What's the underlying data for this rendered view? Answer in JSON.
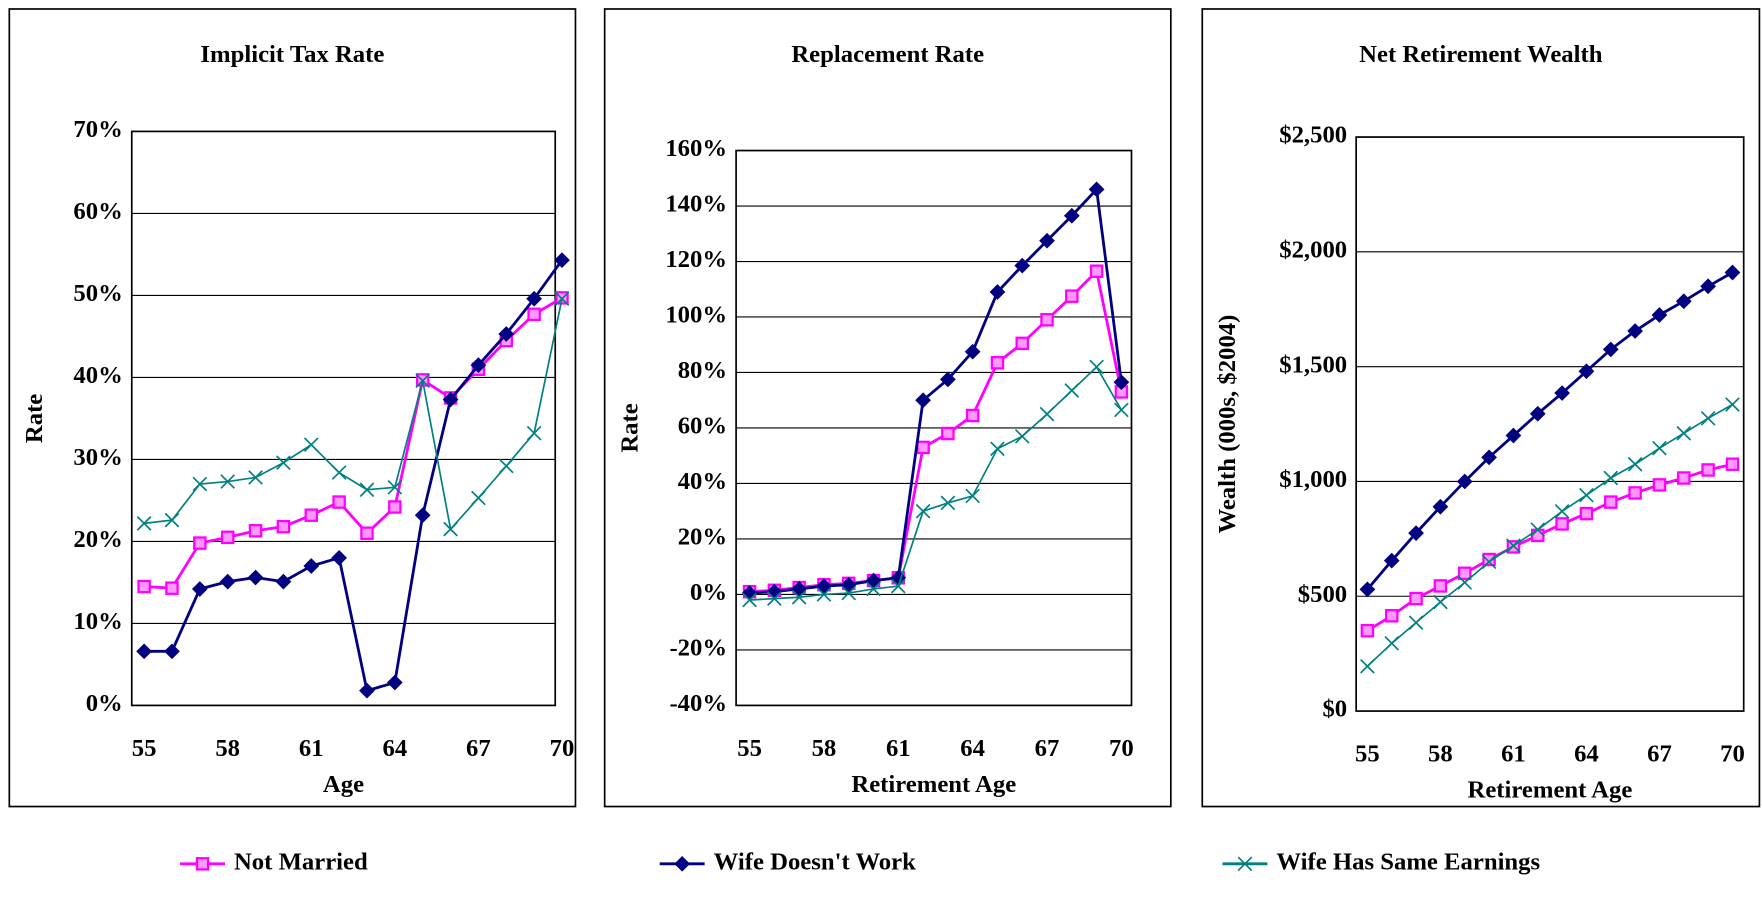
{
  "chart_data": [
    {
      "type": "line",
      "title": "Implicit Tax Rate",
      "x_label": "Age",
      "y_label": "Rate",
      "categories": [
        55,
        null,
        null,
        58,
        null,
        null,
        61,
        null,
        null,
        64,
        null,
        null,
        67,
        null,
        null,
        70
      ],
      "ylim": [
        0,
        70
      ],
      "yticks": [
        {
          "value": 0,
          "label": "0%"
        },
        {
          "value": 10,
          "label": "10%"
        },
        {
          "value": 20,
          "label": "20%"
        },
        {
          "value": 30,
          "label": "30%"
        },
        {
          "value": 40,
          "label": "40%"
        },
        {
          "value": 50,
          "label": "50%"
        },
        {
          "value": 60,
          "label": "60%"
        },
        {
          "value": 70,
          "label": "70%"
        }
      ],
      "grid": true,
      "series": [
        {
          "name": "Not Married",
          "color": "#ff00ff",
          "values": [
            14.5,
            14.3,
            19.8,
            20.5,
            21.3,
            21.8,
            23.2,
            24.8,
            21,
            24.2,
            39.7,
            37.5,
            41,
            44.5,
            47.7,
            49.7
          ]
        },
        {
          "name": "Wife Doesn't Work",
          "color": "#000080",
          "values": [
            6.6,
            6.6,
            14.2,
            15.1,
            15.6,
            15.1,
            17,
            18,
            1.8,
            2.8,
            23.2,
            37.3,
            41.5,
            45.3,
            49.6,
            54.3
          ]
        },
        {
          "name": "Wife Has Same Earnings",
          "color": "#008080",
          "values": [
            22.2,
            22.6,
            27,
            27.3,
            27.8,
            29.6,
            31.8,
            28.4,
            26.3,
            26.6,
            39.6,
            21.5,
            25.3,
            29.2,
            33.2,
            49.6
          ]
        }
      ]
    },
    {
      "type": "line",
      "title": "Replacement Rate",
      "x_label": "Retirement Age",
      "y_label": "Rate",
      "categories": [
        55,
        null,
        null,
        58,
        null,
        null,
        61,
        null,
        null,
        64,
        null,
        null,
        67,
        null,
        null,
        70
      ],
      "ylim": [
        -40,
        160
      ],
      "yticks": [
        {
          "value": -40,
          "label": "-40%"
        },
        {
          "value": -20,
          "label": "-20%"
        },
        {
          "value": 0,
          "label": "0%"
        },
        {
          "value": 20,
          "label": "20%"
        },
        {
          "value": 40,
          "label": "40%"
        },
        {
          "value": 60,
          "label": "60%"
        },
        {
          "value": 80,
          "label": "80%"
        },
        {
          "value": 100,
          "label": "100%"
        },
        {
          "value": 120,
          "label": "120%"
        },
        {
          "value": 140,
          "label": "140%"
        },
        {
          "value": 160,
          "label": "160%"
        }
      ],
      "grid": true,
      "series": [
        {
          "color": "#ff00ff",
          "values": [
            1,
            1.5,
            2.5,
            3.5,
            4,
            5,
            6,
            53,
            58,
            64.5,
            83.5,
            90.5,
            99,
            107.5,
            116.5,
            73
          ]
        },
        {
          "color": "#000080",
          "values": [
            0.5,
            1,
            2,
            3,
            3.5,
            5,
            6,
            70,
            77.5,
            87.5,
            109,
            118.5,
            127.5,
            136.5,
            146,
            76.5
          ]
        },
        {
          "color": "#008080",
          "values": [
            -2,
            -1.5,
            -1,
            0,
            0.5,
            2,
            3,
            30,
            33,
            35.5,
            52.5,
            57,
            65,
            73.5,
            82,
            66.5
          ]
        }
      ]
    },
    {
      "type": "line",
      "title": "Net Retirement Wealth",
      "x_label": "Retirement Age",
      "y_label": "Wealth (000s, $2004)",
      "categories": [
        55,
        null,
        null,
        58,
        null,
        null,
        61,
        null,
        null,
        64,
        null,
        null,
        67,
        null,
        null,
        70
      ],
      "ylim": [
        0,
        2500
      ],
      "yticks": [
        {
          "value": 0,
          "label": "$0"
        },
        {
          "value": 500,
          "label": "$500"
        },
        {
          "value": 1000,
          "label": "$1,000"
        },
        {
          "value": 1500,
          "label": "$1,500"
        },
        {
          "value": 2000,
          "label": "$2,000"
        },
        {
          "value": 2500,
          "label": "$2,500"
        }
      ],
      "grid": true,
      "series": [
        {
          "color": "#ff00ff",
          "values": [
            350,
            415,
            490,
            545,
            600,
            660,
            715,
            765,
            815,
            860,
            910,
            950,
            985,
            1015,
            1050,
            1075
          ]
        },
        {
          "color": "#000080",
          "values": [
            530,
            655,
            775,
            890,
            1000,
            1105,
            1200,
            1295,
            1385,
            1480,
            1575,
            1655,
            1725,
            1785,
            1850,
            1910
          ]
        },
        {
          "color": "#008080",
          "values": [
            195,
            295,
            385,
            475,
            560,
            650,
            720,
            790,
            870,
            940,
            1015,
            1075,
            1145,
            1210,
            1275,
            1335
          ]
        }
      ]
    }
  ]
}
